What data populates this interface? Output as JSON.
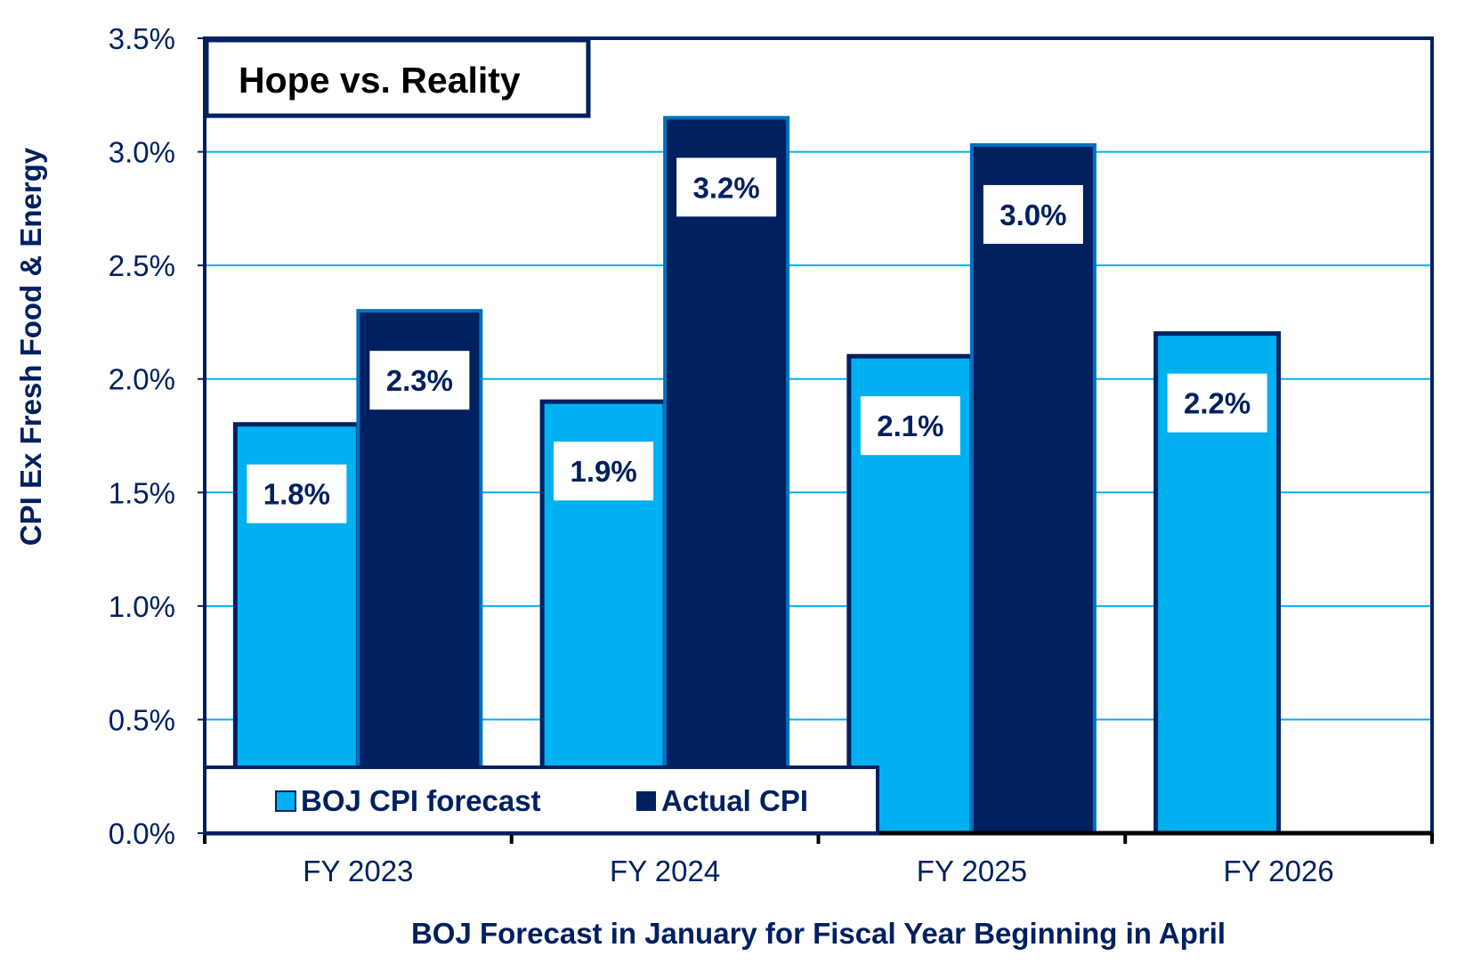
{
  "chart_data": {
    "type": "bar",
    "title": "Hope vs. Reality",
    "xlabel": "BOJ Forecast in January for Fiscal Year Beginning in April",
    "ylabel": "CPI Ex Fresh Food & Energy",
    "ylim": [
      0,
      3.5
    ],
    "yticks": [
      0,
      0.5,
      1.0,
      1.5,
      2.0,
      2.5,
      3.0,
      3.5
    ],
    "ytick_labels": [
      "0.0%",
      "0.5%",
      "1.0%",
      "1.5%",
      "2.0%",
      "2.5%",
      "3.0%",
      "3.5%"
    ],
    "categories": [
      "FY 2023",
      "FY 2024",
      "FY 2025",
      "FY 2026"
    ],
    "series": [
      {
        "name": "BOJ CPI forecast",
        "color": "#00B0F0",
        "values": [
          1.8,
          1.9,
          2.1,
          2.2
        ],
        "labels": [
          "1.8%",
          "1.9%",
          "2.1%",
          "2.2%"
        ]
      },
      {
        "name": "Actual CPI",
        "color": "#002060",
        "values": [
          2.3,
          3.15,
          3.03,
          null
        ],
        "labels": [
          "2.3%",
          "3.2%",
          "3.0%",
          null
        ]
      }
    ],
    "grid": true,
    "legend_position": "bottom-left"
  }
}
